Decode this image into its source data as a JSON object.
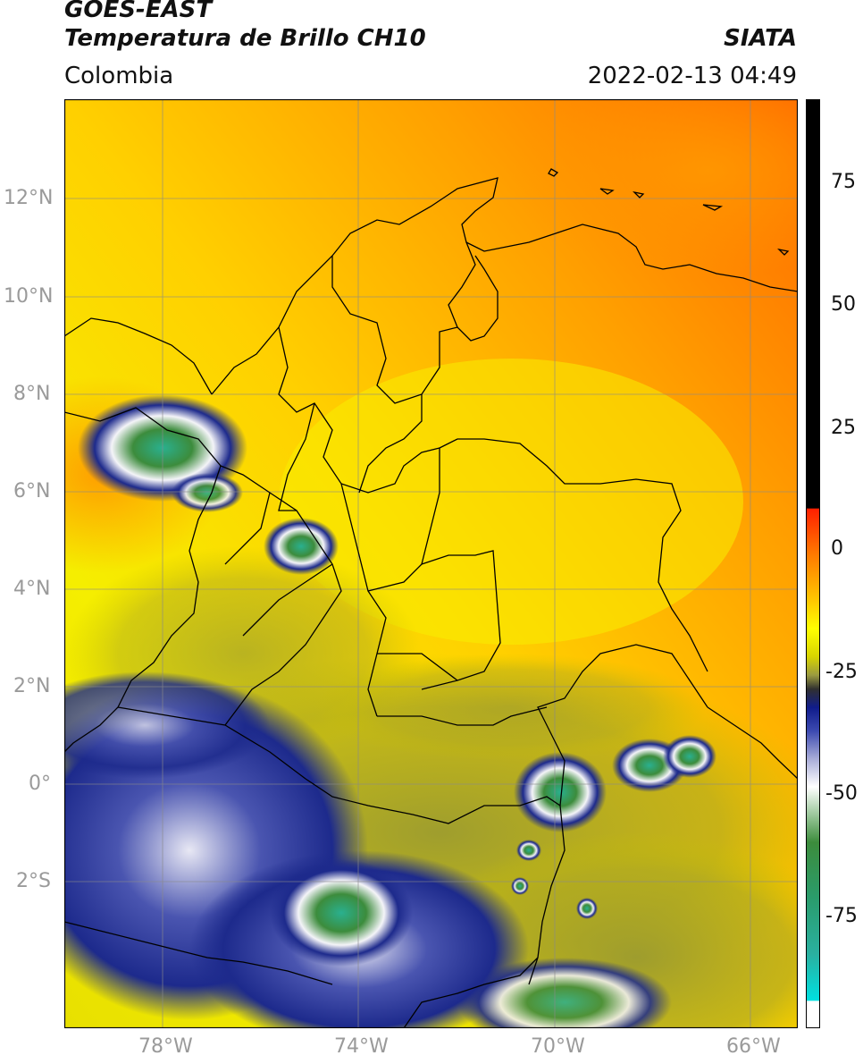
{
  "header": {
    "satellite": "GOES-EAST",
    "product": "Temperatura de Brillo CH10",
    "region": "Colombia",
    "agency": "SIATA",
    "datetime": "2022-02-13 04:49"
  },
  "axes": {
    "lat_ticks": [
      "12°N",
      "10°N",
      "8°N",
      "6°N",
      "4°N",
      "2°N",
      "0°",
      "2°S"
    ],
    "lon_ticks": [
      "78°W",
      "74°W",
      "70°W",
      "66°W"
    ]
  },
  "colorbar": {
    "ticks": [
      "75",
      "50",
      "25",
      "0",
      "-25",
      "-50",
      "-75"
    ]
  },
  "colors": {
    "warm_orange": "#ff8c00",
    "yellow": "#f5ee00",
    "olive": "#a8a22a",
    "navy": "#1d2a8c",
    "white": "#f4f4f8",
    "green": "#3c8c3c",
    "teal": "#2ab08f",
    "red": "#ff2000",
    "black": "#000000"
  }
}
